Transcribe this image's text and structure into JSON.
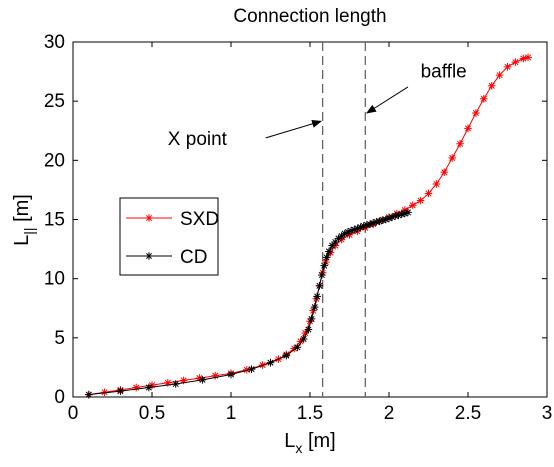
{
  "chart_data": {
    "type": "line",
    "title": "Connection length",
    "xlabel": {
      "main": "L",
      "sub": "x",
      "unit": " [m]"
    },
    "ylabel": {
      "main": "L",
      "sub": "||",
      "unit": " [m]"
    },
    "xlim": [
      0,
      3
    ],
    "ylim": [
      0,
      30
    ],
    "xticks": [
      0,
      0.5,
      1,
      1.5,
      2,
      2.5,
      3
    ],
    "xtick_labels": [
      "0",
      "0.5",
      "1",
      "1.5",
      "2",
      "2.5",
      "3"
    ],
    "yticks": [
      0,
      5,
      10,
      15,
      20,
      25,
      30
    ],
    "ytick_labels": [
      "0",
      "5",
      "10",
      "15",
      "20",
      "25",
      "30"
    ],
    "grid": false,
    "legend_position": "left",
    "vertical_lines": [
      {
        "x": 1.58,
        "style": "dashed"
      },
      {
        "x": 1.85,
        "style": "dashed"
      }
    ],
    "annotations": [
      {
        "text": "X point",
        "text_at": [
          0.6,
          21.3
        ],
        "arrow_from": [
          1.22,
          21.9
        ],
        "arrow_to": [
          1.57,
          23.3
        ]
      },
      {
        "text": "baffle",
        "text_at": [
          2.2,
          27.0
        ],
        "arrow_from": [
          2.12,
          26.2
        ],
        "arrow_to": [
          1.86,
          24.0
        ]
      }
    ],
    "series": [
      {
        "name": "SXD",
        "color": "#ff0000",
        "marker": "asterisk",
        "x": [
          0.1,
          0.2,
          0.3,
          0.4,
          0.5,
          0.6,
          0.7,
          0.8,
          0.9,
          1.0,
          1.1,
          1.2,
          1.3,
          1.35,
          1.4,
          1.44,
          1.47,
          1.5,
          1.52,
          1.54,
          1.56,
          1.58,
          1.6,
          1.63,
          1.66,
          1.7,
          1.75,
          1.8,
          1.85,
          1.9,
          1.95,
          2.0,
          2.05,
          2.1,
          2.15,
          2.2,
          2.25,
          2.3,
          2.35,
          2.4,
          2.45,
          2.5,
          2.55,
          2.6,
          2.65,
          2.7,
          2.75,
          2.8,
          2.85,
          2.88
        ],
        "y": [
          0.2,
          0.4,
          0.6,
          0.8,
          1.0,
          1.2,
          1.4,
          1.6,
          1.8,
          2.0,
          2.3,
          2.7,
          3.2,
          3.6,
          4.1,
          4.7,
          5.4,
          6.4,
          7.3,
          8.3,
          9.4,
          10.5,
          11.4,
          12.2,
          12.8,
          13.3,
          13.7,
          14.0,
          14.3,
          14.6,
          14.9,
          15.2,
          15.5,
          15.8,
          16.2,
          16.6,
          17.2,
          18.0,
          19.0,
          20.2,
          21.4,
          22.7,
          24.0,
          25.2,
          26.3,
          27.2,
          27.9,
          28.3,
          28.6,
          28.7
        ]
      },
      {
        "name": "CD",
        "color": "#000000",
        "marker": "asterisk",
        "x": [
          0.1,
          0.3,
          0.48,
          0.65,
          0.82,
          1.0,
          1.13,
          1.25,
          1.35,
          1.42,
          1.46,
          1.49,
          1.51,
          1.53,
          1.545,
          1.56,
          1.575,
          1.59,
          1.605,
          1.62,
          1.64,
          1.66,
          1.68,
          1.7,
          1.72,
          1.74,
          1.76,
          1.78,
          1.8,
          1.82,
          1.84,
          1.86,
          1.88,
          1.9,
          1.92,
          1.94,
          1.96,
          1.98,
          2.0,
          2.02,
          2.04,
          2.06,
          2.08,
          2.1,
          2.12
        ],
        "y": [
          0.2,
          0.5,
          0.8,
          1.1,
          1.45,
          1.9,
          2.35,
          2.9,
          3.5,
          4.2,
          4.9,
          5.7,
          6.6,
          7.6,
          8.5,
          9.4,
          10.3,
          11.1,
          11.8,
          12.3,
          12.8,
          13.1,
          13.4,
          13.6,
          13.8,
          13.95,
          14.05,
          14.15,
          14.25,
          14.35,
          14.45,
          14.55,
          14.6,
          14.7,
          14.8,
          14.85,
          14.95,
          15.0,
          15.1,
          15.2,
          15.3,
          15.35,
          15.45,
          15.5,
          15.6
        ]
      }
    ]
  }
}
